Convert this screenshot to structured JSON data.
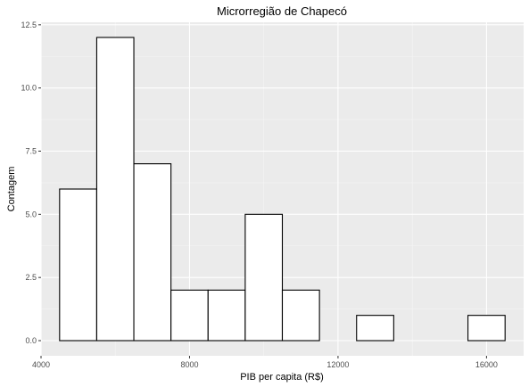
{
  "chart_data": {
    "type": "bar",
    "title": "Microrregião de  Chapecó",
    "xlabel": "PIB per capita (R$)",
    "ylabel": "Contagem",
    "bin_edges": [
      4500,
      5500,
      6500,
      7500,
      8500,
      9500,
      10500,
      11500,
      12500,
      13500,
      14500,
      15500,
      16500
    ],
    "values": [
      6,
      12,
      7,
      2,
      2,
      5,
      2,
      0,
      1,
      0,
      0,
      1
    ],
    "xlim": [
      4000,
      17000
    ],
    "ylim": [
      -0.6,
      12.6
    ],
    "x_ticks": [
      4000,
      8000,
      12000,
      16000
    ],
    "y_ticks": [
      0,
      2.5,
      5,
      7.5,
      10,
      12.5
    ],
    "x_tick_labels": [
      "4000",
      "8000",
      "12000",
      "16000"
    ],
    "y_tick_labels": [
      "0.0",
      "2.5",
      "5.0",
      "7.5",
      "10.0",
      "12.5"
    ],
    "grid": true,
    "colors": {
      "panel_background": "#ebebeb",
      "grid_major": "#ffffff",
      "grid_minor": "#f5f5f5",
      "bar_fill": "#ffffff",
      "bar_outline": "#000000",
      "tick_label": "#4d4d4d"
    }
  }
}
